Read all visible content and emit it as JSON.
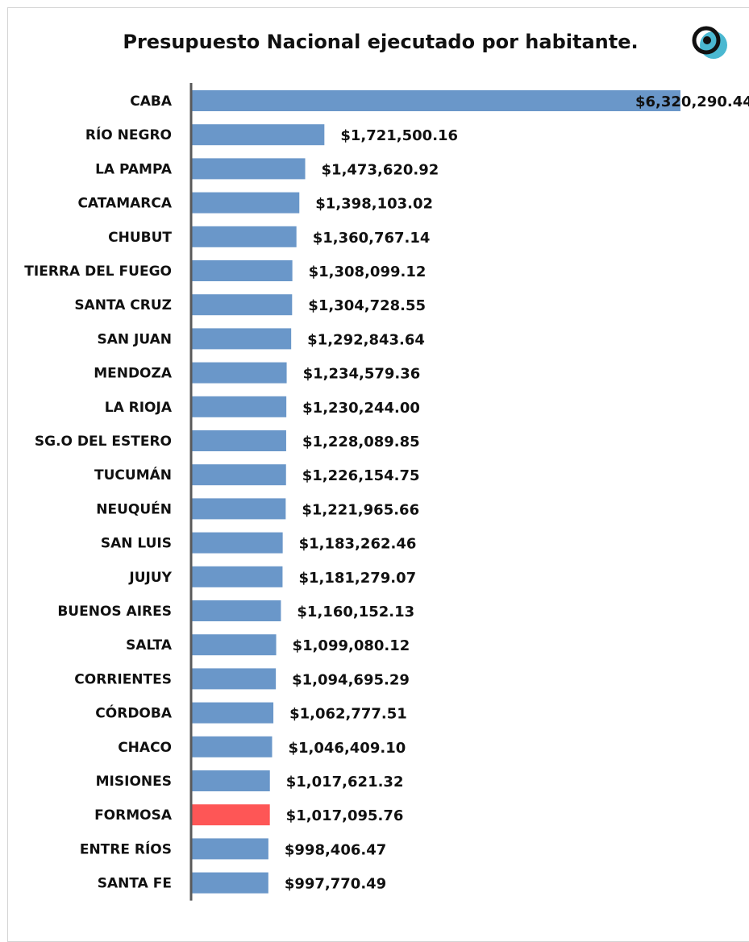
{
  "chart_data": {
    "type": "bar",
    "orientation": "horizontal",
    "title": "Presupuesto Nacional ejecutado por habitante.",
    "categories": [
      "CABA",
      "RÍO NEGRO",
      "LA PAMPA",
      "CATAMARCA",
      "CHUBUT",
      "TIERRA DEL FUEGO",
      "SANTA CRUZ",
      "SAN JUAN",
      "MENDOZA",
      "LA RIOJA",
      "SG.O DEL ESTERO",
      "TUCUMÁN",
      "NEUQUÉN",
      "SAN LUIS",
      "JUJUY",
      "BUENOS AIRES",
      "SALTA",
      "CORRIENTES",
      "CÓRDOBA",
      "CHACO",
      "MISIONES",
      "FORMOSA",
      "ENTRE RÍOS",
      "SANTA FE"
    ],
    "values": [
      6320290.44,
      1721500.16,
      1473620.92,
      1398103.02,
      1360767.14,
      1308099.12,
      1304728.55,
      1292843.64,
      1234579.36,
      1230244.0,
      1228089.85,
      1226154.75,
      1221965.66,
      1183262.46,
      1181279.07,
      1160152.13,
      1099080.12,
      1094695.29,
      1062777.51,
      1046409.1,
      1017621.32,
      1017095.76,
      998406.47,
      997770.49
    ],
    "data_labels": [
      "$6,320,290.44",
      "$1,721,500.16",
      "$1,473,620.92",
      "$1,398,103.02",
      "$1,360,767.14",
      "$1,308,099.12",
      "$1,304,728.55",
      "$1,292,843.64",
      "$1,234,579.36",
      "$1,230,244.00",
      "$1,228,089.85",
      "$1,226,154.75",
      "$1,221,965.66",
      "$1,183,262.46",
      "$1,181,279.07",
      "$1,160,152.13",
      "$1,099,080.12",
      "$1,094,695.29",
      "$1,062,777.51",
      "$1,046,409.10",
      "$1,017,621.32",
      "$1,017,095.76",
      "$998,406.47",
      "$997,770.49"
    ],
    "highlight_category": "FORMOSA",
    "colors": {
      "bar": "#6a97c9",
      "highlight": "#fe5656",
      "axis": "#595959"
    },
    "xlim": [
      0,
      6320290.44
    ],
    "grid": false,
    "legend": "none"
  },
  "logo": {
    "name": "chequeado-logo",
    "colors": {
      "ring": "#111111",
      "accent": "#4ab8d1"
    }
  }
}
